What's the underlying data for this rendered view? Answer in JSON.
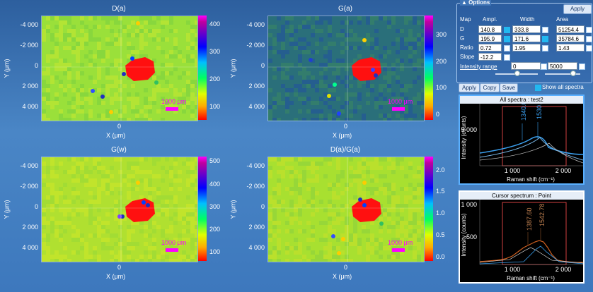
{
  "maps": [
    {
      "title": "D(a)",
      "cbar_ticks": [
        "400",
        "300",
        "200",
        "100"
      ],
      "cbar_tick_vals": [
        400,
        300,
        200,
        100
      ],
      "cbar_range": [
        50,
        430
      ],
      "scale_label": "1000 μm"
    },
    {
      "title": "G(a)",
      "cbar_ticks": [
        "300",
        "200",
        "100",
        "0"
      ],
      "cbar_tick_vals": [
        300,
        200,
        100,
        0
      ],
      "cbar_range": [
        -20,
        370
      ],
      "scale_label": "1000 μm"
    },
    {
      "title": "G(w)",
      "cbar_ticks": [
        "500",
        "400",
        "300",
        "200",
        "100"
      ],
      "cbar_tick_vals": [
        500,
        400,
        300,
        200,
        100
      ],
      "cbar_range": [
        60,
        520
      ],
      "scale_label": "1000 μm"
    },
    {
      "title": "D(a)/G(a)",
      "cbar_ticks": [
        "2.0",
        "1.5",
        "1.0",
        "0.5",
        "0.0"
      ],
      "cbar_tick_vals": [
        2.0,
        1.5,
        1.0,
        0.5,
        0.0
      ],
      "cbar_range": [
        -0.1,
        2.3
      ],
      "scale_label": "1000 μm"
    }
  ],
  "axes": {
    "xlabel": "X (μm)",
    "ylabel": "Y (μm)",
    "y_ticks": [
      "-4 000",
      "-2 000",
      "0",
      "2 000",
      "4 000"
    ],
    "x_tick": "0"
  },
  "options": {
    "header": "Options",
    "apply_top": "Apply",
    "col_headers": [
      "Map",
      "Ampl.",
      "Width",
      "Area"
    ],
    "rows": [
      {
        "label": "D",
        "ampl": "140.8",
        "width": "333.8",
        "area": "51254.4"
      },
      {
        "label": "G",
        "ampl": "195.9",
        "width": "171.6",
        "area": "35784.6"
      },
      {
        "label": "Ratio",
        "ampl": "0.72",
        "width": "1.95",
        "area": "1.43"
      },
      {
        "label": "Slope",
        "ampl": "-12.2"
      }
    ],
    "intensity_range_label": "Intensity range",
    "range_min": "0",
    "range_max": "5000",
    "buttons": [
      "Apply",
      "Copy",
      "Save"
    ],
    "show_all_label": "Show all spectra"
  },
  "spectrum_all": {
    "title": "All spectra : test2",
    "ylabel": "Intensity (counts)",
    "xlabel": "Raman shift (cm⁻¹)",
    "y_tick": "5 000",
    "x_ticks": [
      "1 000",
      "2 000"
    ],
    "peaks": [
      "1340.00",
      "1530.00"
    ]
  },
  "spectrum_cursor": {
    "title": "Cursor spectrum : Point",
    "ylabel": "Intensity (counts)",
    "xlabel": "Raman shift (cm⁻¹)",
    "y_ticks": [
      "1 000",
      "500"
    ],
    "x_ticks": [
      "1 000",
      "2 000"
    ],
    "peaks": [
      "1387.60",
      "1542.78"
    ]
  },
  "colors": {
    "accent": "#22b8f0",
    "scale": "#ff00ff"
  }
}
